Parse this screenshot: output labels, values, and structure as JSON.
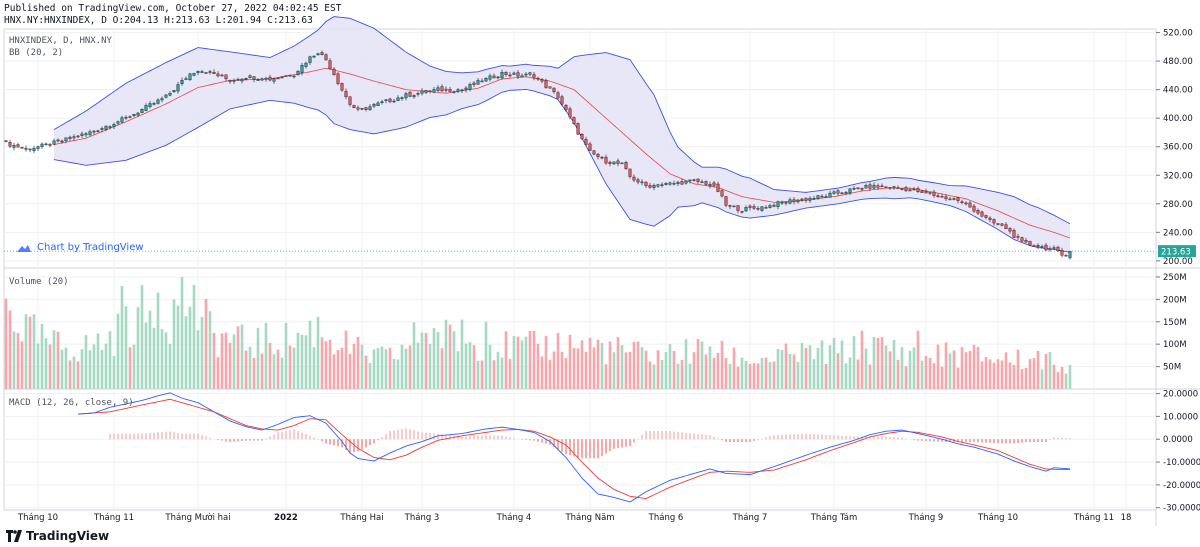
{
  "header": {
    "published": "Published on TradingView.com, October 27, 2022 04:02:45 EST",
    "ohlc": "HNX.NY:HNXINDEX, D O:204.13 H:213.63 L:201.94 C:213.63"
  },
  "watermark": {
    "text": "Chart by TradingView"
  },
  "footer": {
    "brand": "TradingView"
  },
  "colors": {
    "up": "#26a69a",
    "down": "#ef5350",
    "bb_fill": "#e3e3f6",
    "bb_band": "#3f51e0",
    "bb_basis": "#e84545",
    "macd": "#2962ff",
    "signal": "#ef3b3b",
    "vol_up": "#a6d9c4",
    "vol_down": "#f5a7ab",
    "price_tag": "#26a69a",
    "grid": "#eef0f3"
  },
  "chart_data": [
    {
      "type": "candlestick",
      "title": "HNXINDEX, D, HNX.NY",
      "indicator_label": "BB (20, 2)",
      "last_price": 213.63,
      "last_price_label": "213.63",
      "ylim": [
        190,
        525
      ],
      "yticks": [
        200,
        240,
        280,
        320,
        360,
        400,
        440,
        480,
        520
      ],
      "ytick_labels": [
        "200.00",
        "240.00",
        "280.00",
        "320.00",
        "360.00",
        "400.00",
        "440.00",
        "480.00",
        "520.00"
      ],
      "close_anchors": [
        [
          0,
          365
        ],
        [
          5,
          357
        ],
        [
          10,
          362
        ],
        [
          20,
          378
        ],
        [
          30,
          400
        ],
        [
          40,
          430
        ],
        [
          46,
          462
        ],
        [
          48,
          468
        ],
        [
          52,
          462
        ],
        [
          56,
          453
        ],
        [
          60,
          458
        ],
        [
          66,
          455
        ],
        [
          72,
          462
        ],
        [
          76,
          485
        ],
        [
          78,
          493
        ],
        [
          80,
          482
        ],
        [
          82,
          462
        ],
        [
          84,
          440
        ],
        [
          86,
          420
        ],
        [
          88,
          410
        ],
        [
          92,
          418
        ],
        [
          100,
          432
        ],
        [
          108,
          440
        ],
        [
          114,
          440
        ],
        [
          118,
          450
        ],
        [
          124,
          463
        ],
        [
          128,
          460
        ],
        [
          132,
          460
        ],
        [
          134,
          450
        ],
        [
          138,
          430
        ],
        [
          140,
          410
        ],
        [
          142,
          390
        ],
        [
          144,
          370
        ],
        [
          146,
          352
        ],
        [
          150,
          340
        ],
        [
          154,
          335
        ],
        [
          156,
          318
        ],
        [
          160,
          305
        ],
        [
          166,
          308
        ],
        [
          172,
          312
        ],
        [
          176,
          308
        ],
        [
          178,
          298
        ],
        [
          180,
          278
        ],
        [
          184,
          272
        ],
        [
          190,
          276
        ],
        [
          196,
          284
        ],
        [
          204,
          290
        ],
        [
          210,
          298
        ],
        [
          216,
          304
        ],
        [
          220,
          304
        ],
        [
          226,
          300
        ],
        [
          232,
          292
        ],
        [
          238,
          285
        ],
        [
          242,
          272
        ],
        [
          246,
          255
        ],
        [
          250,
          246
        ],
        [
          254,
          225
        ],
        [
          258,
          221
        ],
        [
          262,
          215
        ],
        [
          264,
          208
        ],
        [
          266,
          213.63
        ]
      ],
      "bb_basis_anchors": [
        [
          12,
          363
        ],
        [
          20,
          372
        ],
        [
          30,
          395
        ],
        [
          40,
          420
        ],
        [
          48,
          443
        ],
        [
          56,
          453
        ],
        [
          66,
          455
        ],
        [
          76,
          465
        ],
        [
          80,
          470
        ],
        [
          86,
          462
        ],
        [
          92,
          452
        ],
        [
          100,
          440
        ],
        [
          110,
          435
        ],
        [
          118,
          442
        ],
        [
          124,
          455
        ],
        [
          130,
          458
        ],
        [
          136,
          452
        ],
        [
          142,
          440
        ],
        [
          148,
          410
        ],
        [
          154,
          380
        ],
        [
          160,
          350
        ],
        [
          166,
          322
        ],
        [
          172,
          308
        ],
        [
          178,
          303
        ],
        [
          184,
          290
        ],
        [
          192,
          282
        ],
        [
          200,
          285
        ],
        [
          208,
          291
        ],
        [
          214,
          298
        ],
        [
          220,
          302
        ],
        [
          226,
          302
        ],
        [
          232,
          296
        ],
        [
          240,
          287
        ],
        [
          248,
          270
        ],
        [
          256,
          250
        ],
        [
          262,
          240
        ],
        [
          266,
          232
        ]
      ],
      "bb_width_anchors": [
        [
          12,
          21
        ],
        [
          20,
          38
        ],
        [
          30,
          54
        ],
        [
          40,
          58
        ],
        [
          48,
          56
        ],
        [
          56,
          40
        ],
        [
          66,
          30
        ],
        [
          72,
          40
        ],
        [
          78,
          56
        ],
        [
          82,
          75
        ],
        [
          86,
          78
        ],
        [
          92,
          74
        ],
        [
          98,
          58
        ],
        [
          106,
          36
        ],
        [
          114,
          25
        ],
        [
          120,
          22
        ],
        [
          126,
          17
        ],
        [
          132,
          18
        ],
        [
          138,
          22
        ],
        [
          144,
          58
        ],
        [
          150,
          92
        ],
        [
          156,
          112
        ],
        [
          162,
          92
        ],
        [
          168,
          42
        ],
        [
          174,
          25
        ],
        [
          180,
          30
        ],
        [
          186,
          28
        ],
        [
          192,
          18
        ],
        [
          200,
          11
        ],
        [
          208,
          11
        ],
        [
          216,
          12
        ],
        [
          222,
          15
        ],
        [
          228,
          13
        ],
        [
          236,
          14
        ],
        [
          244,
          22
        ],
        [
          252,
          30
        ],
        [
          258,
          28
        ],
        [
          262,
          24
        ],
        [
          266,
          20
        ]
      ],
      "volume": {
        "label": "Volume (20)",
        "ylim": [
          0,
          270
        ],
        "yticks": [
          50,
          100,
          150,
          200,
          250
        ],
        "ytick_labels": [
          "50M",
          "100M",
          "150M",
          "200M",
          "250M"
        ],
        "anchors": [
          [
            0,
            205
          ],
          [
            4,
            150
          ],
          [
            10,
            110
          ],
          [
            16,
            100
          ],
          [
            20,
            100
          ],
          [
            26,
            120
          ],
          [
            30,
            150
          ],
          [
            34,
            180
          ],
          [
            40,
            160
          ],
          [
            44,
            185
          ],
          [
            46,
            220
          ],
          [
            48,
            180
          ],
          [
            52,
            130
          ],
          [
            56,
            120
          ],
          [
            60,
            110
          ],
          [
            66,
            115
          ],
          [
            72,
            120
          ],
          [
            76,
            140
          ],
          [
            78,
            150
          ],
          [
            80,
            130
          ],
          [
            84,
            110
          ],
          [
            90,
            80
          ],
          [
            96,
            75
          ],
          [
            100,
            100
          ],
          [
            104,
            140
          ],
          [
            108,
            130
          ],
          [
            112,
            120
          ],
          [
            116,
            110
          ],
          [
            120,
            110
          ],
          [
            126,
            100
          ],
          [
            132,
            100
          ],
          [
            138,
            110
          ],
          [
            144,
            105
          ],
          [
            150,
            95
          ],
          [
            156,
            90
          ],
          [
            160,
            80
          ],
          [
            166,
            85
          ],
          [
            172,
            90
          ],
          [
            176,
            95
          ],
          [
            180,
            80
          ],
          [
            186,
            70
          ],
          [
            192,
            75
          ],
          [
            200,
            85
          ],
          [
            208,
            90
          ],
          [
            214,
            95
          ],
          [
            220,
            100
          ],
          [
            226,
            85
          ],
          [
            230,
            75
          ],
          [
            236,
            85
          ],
          [
            242,
            80
          ],
          [
            248,
            75
          ],
          [
            254,
            70
          ],
          [
            260,
            65
          ],
          [
            266,
            60
          ]
        ],
        "spikes": [
          [
            44,
            250
          ],
          [
            29,
            230
          ],
          [
            38,
            215
          ],
          [
            42,
            200
          ],
          [
            105,
            125
          ],
          [
            114,
            155
          ],
          [
            120,
            150
          ],
          [
            148,
            110
          ],
          [
            176,
            95
          ],
          [
            214,
            130
          ],
          [
            228,
            130
          ],
          [
            258,
            85
          ]
        ]
      },
      "macd": {
        "label": "MACD (12, 26, close, 9)",
        "ylim": [
          -31,
          22
        ],
        "yticks": [
          20,
          10,
          0,
          -10,
          -20,
          -30
        ],
        "ytick_labels": [
          "20.0000",
          "10.0000",
          "0.0000",
          "-10.0000",
          "-20.0000",
          "-30.0000"
        ],
        "macd_anchors": [
          [
            18,
            11
          ],
          [
            22,
            11.5
          ],
          [
            26,
            14
          ],
          [
            30,
            15.5
          ],
          [
            34,
            17
          ],
          [
            38,
            19
          ],
          [
            41,
            20.3
          ],
          [
            44,
            18
          ],
          [
            48,
            16
          ],
          [
            52,
            12
          ],
          [
            56,
            8
          ],
          [
            60,
            5.5
          ],
          [
            64,
            4
          ],
          [
            68,
            6.5
          ],
          [
            72,
            9.5
          ],
          [
            76,
            10.3
          ],
          [
            80,
            7
          ],
          [
            84,
            -1
          ],
          [
            86,
            -6
          ],
          [
            88,
            -8.5
          ],
          [
            92,
            -9.5
          ],
          [
            96,
            -6
          ],
          [
            100,
            -3
          ],
          [
            104,
            -1
          ],
          [
            108,
            1.5
          ],
          [
            114,
            2.5
          ],
          [
            120,
            4.5
          ],
          [
            124,
            5.3
          ],
          [
            128,
            4.3
          ],
          [
            132,
            3
          ],
          [
            136,
            -1
          ],
          [
            140,
            -8
          ],
          [
            144,
            -17
          ],
          [
            148,
            -24
          ],
          [
            152,
            -25.5
          ],
          [
            156,
            -27.5
          ],
          [
            160,
            -23
          ],
          [
            166,
            -18
          ],
          [
            172,
            -15
          ],
          [
            176,
            -13
          ],
          [
            180,
            -15
          ],
          [
            186,
            -15.5
          ],
          [
            192,
            -12
          ],
          [
            200,
            -7
          ],
          [
            206,
            -3.5
          ],
          [
            212,
            -0.5
          ],
          [
            216,
            2
          ],
          [
            220,
            3.5
          ],
          [
            224,
            4
          ],
          [
            228,
            2.5
          ],
          [
            234,
            0
          ],
          [
            238,
            -2
          ],
          [
            242,
            -3.5
          ],
          [
            248,
            -6.5
          ],
          [
            252,
            -9.5
          ],
          [
            256,
            -12
          ],
          [
            260,
            -14
          ],
          [
            262,
            -12.5
          ],
          [
            266,
            -13
          ]
        ],
        "signal_anchors": [
          [
            18,
            11
          ],
          [
            26,
            12
          ],
          [
            34,
            15
          ],
          [
            41,
            17.5
          ],
          [
            46,
            15
          ],
          [
            52,
            12
          ],
          [
            56,
            9
          ],
          [
            60,
            6
          ],
          [
            64,
            4.5
          ],
          [
            68,
            4
          ],
          [
            72,
            6
          ],
          [
            76,
            9
          ],
          [
            80,
            8.5
          ],
          [
            84,
            2
          ],
          [
            88,
            -4
          ],
          [
            92,
            -8
          ],
          [
            96,
            -9
          ],
          [
            100,
            -7
          ],
          [
            104,
            -3.5
          ],
          [
            108,
            -0.5
          ],
          [
            114,
            1.5
          ],
          [
            120,
            3
          ],
          [
            124,
            4
          ],
          [
            128,
            4.3
          ],
          [
            132,
            3.5
          ],
          [
            136,
            1
          ],
          [
            140,
            -2.5
          ],
          [
            144,
            -10
          ],
          [
            148,
            -17
          ],
          [
            152,
            -22
          ],
          [
            156,
            -25
          ],
          [
            160,
            -26
          ],
          [
            166,
            -21
          ],
          [
            172,
            -17
          ],
          [
            176,
            -14.5
          ],
          [
            180,
            -14
          ],
          [
            186,
            -14.5
          ],
          [
            192,
            -13.5
          ],
          [
            200,
            -9
          ],
          [
            206,
            -5
          ],
          [
            212,
            -1.5
          ],
          [
            216,
            1
          ],
          [
            220,
            2.5
          ],
          [
            224,
            3.5
          ],
          [
            228,
            3
          ],
          [
            234,
            1
          ],
          [
            238,
            -1
          ],
          [
            242,
            -2.5
          ],
          [
            248,
            -5
          ],
          [
            252,
            -8
          ],
          [
            256,
            -11
          ],
          [
            260,
            -13
          ],
          [
            262,
            -13.2
          ],
          [
            266,
            -13.3
          ]
        ]
      },
      "x_axis": {
        "n_bars": 267,
        "tick_labels": [
          "Tháng 10",
          "Tháng 11",
          "Tháng Mười hai",
          "2022",
          "Tháng Hai",
          "Tháng 3",
          "Tháng 4",
          "Tháng Năm",
          "Tháng 6",
          "Tháng 7",
          "Tháng Tám",
          "Tháng 9",
          "Tháng 10",
          "Tháng 11",
          "18"
        ],
        "tick_bars": [
          8,
          27,
          48,
          70,
          89,
          104,
          127,
          146,
          165,
          186,
          207,
          230,
          248,
          272,
          280
        ],
        "bold_ticks": [
          "2022"
        ]
      }
    }
  ]
}
